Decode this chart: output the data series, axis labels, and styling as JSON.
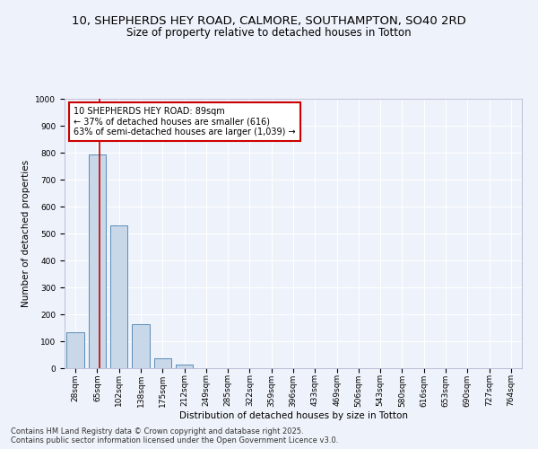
{
  "title_line1": "10, SHEPHERDS HEY ROAD, CALMORE, SOUTHAMPTON, SO40 2RD",
  "title_line2": "Size of property relative to detached houses in Totton",
  "xlabel": "Distribution of detached houses by size in Totton",
  "ylabel": "Number of detached properties",
  "categories": [
    "28sqm",
    "65sqm",
    "102sqm",
    "138sqm",
    "175sqm",
    "212sqm",
    "249sqm",
    "285sqm",
    "322sqm",
    "359sqm",
    "396sqm",
    "433sqm",
    "469sqm",
    "506sqm",
    "543sqm",
    "580sqm",
    "616sqm",
    "653sqm",
    "690sqm",
    "727sqm",
    "764sqm"
  ],
  "values": [
    135,
    795,
    530,
    162,
    37,
    12,
    0,
    0,
    0,
    0,
    0,
    0,
    0,
    0,
    0,
    0,
    0,
    0,
    0,
    0,
    0
  ],
  "bar_color": "#c8d8e8",
  "bar_edge_color": "#5b8db8",
  "annotation_line1": "10 SHEPHERDS HEY ROAD: 89sqm",
  "annotation_line2": "← 37% of detached houses are smaller (616)",
  "annotation_line3": "63% of semi-detached houses are larger (1,039) →",
  "annotation_box_color": "#ffffff",
  "annotation_box_edge_color": "#cc0000",
  "vline_color": "#cc0000",
  "ylim": [
    0,
    1000
  ],
  "yticks": [
    0,
    100,
    200,
    300,
    400,
    500,
    600,
    700,
    800,
    900,
    1000
  ],
  "background_color": "#eef2fa",
  "grid_color": "#ffffff",
  "footer_line1": "Contains HM Land Registry data © Crown copyright and database right 2025.",
  "footer_line2": "Contains public sector information licensed under the Open Government Licence v3.0.",
  "title_fontsize": 9.5,
  "subtitle_fontsize": 8.5,
  "axis_label_fontsize": 7.5,
  "tick_fontsize": 6.5,
  "annotation_fontsize": 7,
  "footer_fontsize": 6
}
